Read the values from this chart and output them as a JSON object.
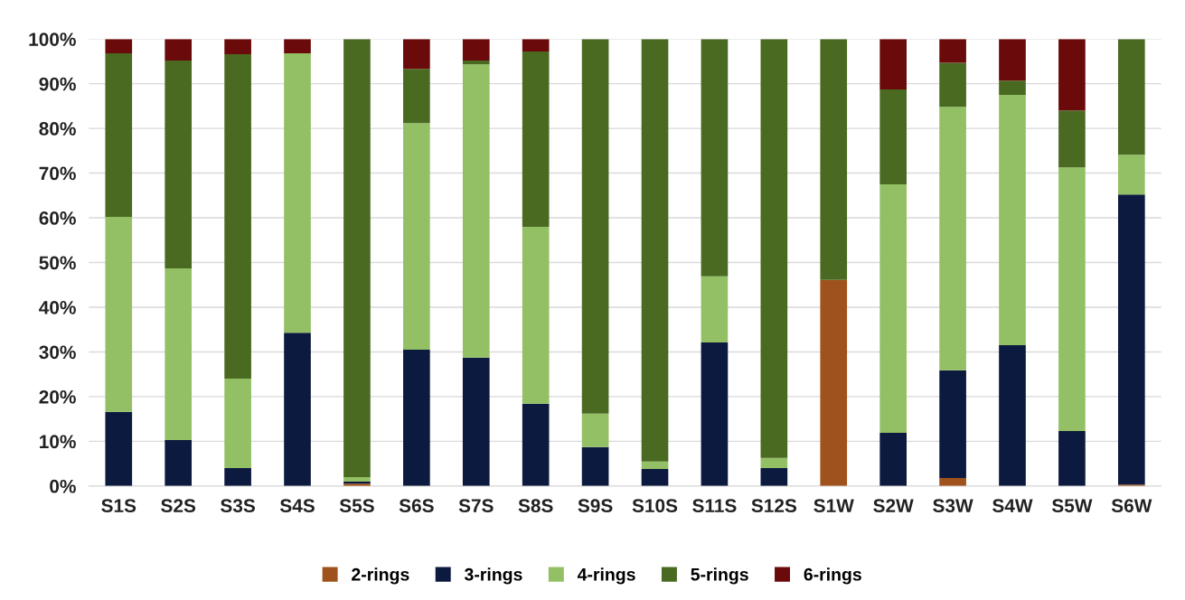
{
  "chart_data": {
    "type": "bar",
    "stacked": true,
    "categories": [
      "S1S",
      "S2S",
      "S3S",
      "S4S",
      "S5S",
      "S6S",
      "S7S",
      "S8S",
      "S9S",
      "S10S",
      "S11S",
      "S12S",
      "S1W",
      "S2W",
      "S3W",
      "S4W",
      "S5W",
      "S6W"
    ],
    "series": [
      {
        "name": "2-rings",
        "color": "#a0521c",
        "values": [
          0,
          0,
          0,
          0,
          0.5,
          0,
          0,
          0,
          0,
          0,
          0,
          0,
          46.1,
          0,
          1.8,
          0,
          0,
          0.3
        ]
      },
      {
        "name": "3-rings",
        "color": "#0d1a3f",
        "values": [
          16.6,
          10.3,
          4.0,
          34.3,
          0.5,
          30.5,
          28.7,
          18.4,
          8.7,
          3.8,
          32.1,
          4.0,
          0,
          11.9,
          24.1,
          31.5,
          12.3,
          64.9
        ]
      },
      {
        "name": "4-rings",
        "color": "#93c064",
        "values": [
          43.6,
          38.4,
          20.0,
          62.5,
          1.0,
          50.7,
          65.6,
          39.6,
          7.5,
          1.7,
          14.8,
          2.3,
          0,
          55.6,
          58.9,
          56.0,
          59.0,
          8.9
        ]
      },
      {
        "name": "5-rings",
        "color": "#4a6a22",
        "values": [
          36.6,
          46.5,
          72.6,
          0,
          98.0,
          12.1,
          0.9,
          39.2,
          83.8,
          94.5,
          53.1,
          93.7,
          53.9,
          21.2,
          9.9,
          3.2,
          12.7,
          25.9
        ]
      },
      {
        "name": "6-rings",
        "color": "#6b0a0a",
        "values": [
          3.2,
          4.8,
          3.4,
          3.2,
          0,
          6.7,
          4.8,
          2.8,
          0,
          0,
          0,
          0,
          0,
          11.3,
          5.3,
          9.3,
          16.0,
          0
        ]
      }
    ],
    "ylim": [
      0,
      100
    ],
    "yticks": [
      {
        "value": 0,
        "label": "0%"
      },
      {
        "value": 10,
        "label": "10%"
      },
      {
        "value": 20,
        "label": "20%"
      },
      {
        "value": 30,
        "label": "30%"
      },
      {
        "value": 40,
        "label": "40%"
      },
      {
        "value": 50,
        "label": "50%"
      },
      {
        "value": 60,
        "label": "60%"
      },
      {
        "value": 70,
        "label": "70%"
      },
      {
        "value": 80,
        "label": "80%"
      },
      {
        "value": 90,
        "label": "90%"
      },
      {
        "value": 100,
        "label": "100%"
      }
    ],
    "grid": "y",
    "legend": "bottom"
  }
}
